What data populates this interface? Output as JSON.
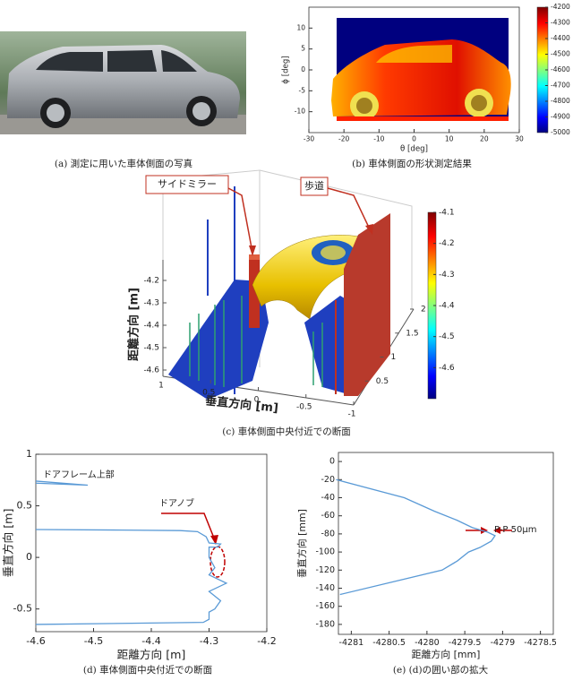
{
  "captions": [
    "(a) 測定に用いた車体側面の写真",
    "(b) 車体側面の形状測定結果",
    "(c) 車体側面中央付近での断面",
    "(d) 車体側面中央付近での断面",
    "(e) (d)の囲い部の拡大"
  ],
  "chart_data": [
    {
      "type": "heatmap",
      "xlabel": "θ [deg]",
      "ylabel": "ϕ [deg]",
      "xlim": [
        -30,
        30
      ],
      "xticks": [
        -30,
        -20,
        -10,
        0,
        10,
        20,
        30
      ],
      "ylim": [
        -15,
        15
      ],
      "yticks": [
        -10,
        -5,
        0,
        5,
        10
      ],
      "colorbar": {
        "lim": [
          -5000,
          -4200
        ],
        "ticks": [
          -5000,
          -4900,
          -4800,
          -4700,
          -4600,
          -4500,
          -4400,
          -4300,
          -4200
        ]
      }
    },
    {
      "type": "surface3d",
      "annotations": [
        "サイドミラー",
        "歩道"
      ],
      "xlabel": "垂直方向 [m]",
      "zlabel": "距離方向 [m]",
      "xlim": [
        1,
        -1
      ],
      "xticks": [
        1,
        0.5,
        0,
        -0.5,
        -1
      ],
      "ylim": [
        0,
        2
      ],
      "yticks": [
        0.5,
        1,
        1.5,
        2
      ],
      "zlim": [
        -4.6,
        -4.1
      ],
      "zticks": [
        -4.6,
        -4.5,
        -4.4,
        -4.3,
        -4.2
      ],
      "colorbar": {
        "lim": [
          -4.7,
          -4.1
        ],
        "ticks": [
          -4.6,
          -4.5,
          -4.4,
          -4.3,
          -4.2,
          -4.1
        ]
      }
    },
    {
      "type": "line",
      "xlabel": "距離方向 [m]",
      "ylabel": "垂直方向 [m]",
      "annotations": [
        "ドアフレーム上部",
        "ドアノブ"
      ],
      "xlim": [
        -4.6,
        -4.2
      ],
      "xticks": [
        -4.6,
        -4.5,
        -4.4,
        -4.3,
        -4.2
      ],
      "ylim": [
        -0.72,
        1
      ],
      "yticks": [
        -0.5,
        0,
        0.5,
        1
      ],
      "x": [
        -4.6,
        -4.51,
        -4.6,
        null,
        -4.6,
        -4.45,
        -4.35,
        -4.32,
        -4.305,
        -4.3,
        -4.28,
        -4.285,
        -4.3,
        -4.3,
        -4.29,
        -4.3,
        -4.27,
        -4.3,
        -4.28,
        -4.29,
        -4.3,
        -4.3,
        -4.31,
        -4.6
      ],
      "series": [
        {
          "color": "#5a9ad6",
          "values": [
            0.74,
            0.7,
            0.72,
            null,
            0.27,
            0.265,
            0.26,
            0.25,
            0.2,
            0.14,
            0.13,
            0.1,
            0.1,
            0,
            -0.1,
            -0.17,
            -0.25,
            -0.33,
            -0.42,
            -0.5,
            -0.53,
            -0.6,
            -0.63,
            -0.65
          ]
        }
      ]
    },
    {
      "type": "line",
      "xlabel": "距離方向 [mm]",
      "ylabel": "垂直方向 [mm]",
      "annotations": [
        "P-P  50μm"
      ],
      "xlim": [
        -4281.17,
        -4278.33
      ],
      "xticks": [
        -4281,
        -4280.5,
        -4280,
        -4279.5,
        -4279,
        -4278.5
      ],
      "ylim": [
        -191,
        10
      ],
      "yticks": [
        -180,
        -160,
        -140,
        -120,
        -100,
        -80,
        -60,
        -40,
        -20,
        0
      ],
      "x": [
        -4281.2,
        -4280.3,
        -4279.9,
        -4279.6,
        -4279.4,
        -4279.2,
        -4279.1,
        -4279.15,
        -4279.3,
        -4279.45,
        -4279.6,
        -4279.8,
        -4280.3,
        -4281.15
      ],
      "series": [
        {
          "color": "#5a9ad6",
          "values": [
            -20,
            -40,
            -55,
            -65,
            -73,
            -78,
            -82,
            -88,
            -95,
            -100,
            -110,
            -120,
            -130,
            -147
          ]
        }
      ]
    }
  ]
}
